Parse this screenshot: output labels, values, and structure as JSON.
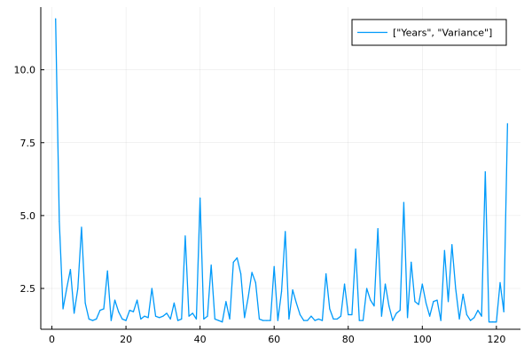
{
  "chart_data": {
    "type": "line",
    "title": "",
    "xlabel": "",
    "ylabel": "",
    "xlim": [
      -3,
      126.5
    ],
    "ylim": [
      1.1,
      12.15
    ],
    "xticks": [
      0,
      20,
      40,
      60,
      80,
      100,
      120
    ],
    "xtick_labels": [
      "0",
      "20",
      "40",
      "60",
      "80",
      "100",
      "120"
    ],
    "yticks": [
      2.5,
      5.0,
      7.5,
      10.0
    ],
    "ytick_labels": [
      "2.5",
      "5.0",
      "7.5",
      "10.0"
    ],
    "grid": true,
    "legend_position": "top-right",
    "series": [
      {
        "name": "[\"Years\", \"Variance\"]",
        "color": "#009AFA",
        "x": [
          1,
          2,
          3,
          4,
          5,
          6,
          7,
          8,
          9,
          10,
          11,
          12,
          13,
          14,
          15,
          16,
          17,
          18,
          19,
          20,
          21,
          22,
          23,
          24,
          25,
          26,
          27,
          28,
          29,
          30,
          31,
          32,
          33,
          34,
          35,
          36,
          37,
          38,
          39,
          40,
          41,
          42,
          43,
          44,
          45,
          46,
          47,
          48,
          49,
          50,
          51,
          52,
          53,
          54,
          55,
          56,
          57,
          58,
          59,
          60,
          61,
          62,
          63,
          64,
          65,
          66,
          67,
          68,
          69,
          70,
          71,
          72,
          73,
          74,
          75,
          76,
          77,
          78,
          79,
          80,
          81,
          82,
          83,
          84,
          85,
          86,
          87,
          88,
          89,
          90,
          91,
          92,
          93,
          94,
          95,
          96,
          97,
          98,
          99,
          100,
          101,
          102,
          103,
          104,
          105,
          106,
          107,
          108,
          109,
          110,
          111,
          112,
          113,
          114,
          115,
          116,
          117,
          118,
          119,
          120,
          121,
          122,
          123
        ],
        "values": [
          11.75,
          4.8,
          1.8,
          2.5,
          3.15,
          1.65,
          2.5,
          4.6,
          2.0,
          1.45,
          1.4,
          1.45,
          1.75,
          1.8,
          3.1,
          1.4,
          2.1,
          1.7,
          1.45,
          1.4,
          1.75,
          1.7,
          2.1,
          1.45,
          1.55,
          1.5,
          2.5,
          1.55,
          1.5,
          1.55,
          1.65,
          1.45,
          2.0,
          1.4,
          1.45,
          4.3,
          1.55,
          1.65,
          1.45,
          5.6,
          1.45,
          1.55,
          3.3,
          1.45,
          1.4,
          1.35,
          2.05,
          1.45,
          3.4,
          3.55,
          3.0,
          1.5,
          2.2,
          3.05,
          2.7,
          1.45,
          1.4,
          1.4,
          1.4,
          3.25,
          1.4,
          2.4,
          4.45,
          1.45,
          2.45,
          2.0,
          1.6,
          1.4,
          1.4,
          1.55,
          1.4,
          1.45,
          1.4,
          3.0,
          1.8,
          1.45,
          1.45,
          1.55,
          2.65,
          1.6,
          1.6,
          3.85,
          1.4,
          1.4,
          2.5,
          2.1,
          1.9,
          4.55,
          1.55,
          2.65,
          1.9,
          1.4,
          1.65,
          1.75,
          5.45,
          1.5,
          3.4,
          2.05,
          1.95,
          2.65,
          2.0,
          1.55,
          2.05,
          2.1,
          1.4,
          3.8,
          2.05,
          4.0,
          2.5,
          1.45,
          2.3,
          1.6,
          1.4,
          1.5,
          1.75,
          1.55,
          6.5,
          1.35,
          1.35,
          1.35,
          2.7,
          1.7,
          8.15
        ]
      }
    ]
  }
}
